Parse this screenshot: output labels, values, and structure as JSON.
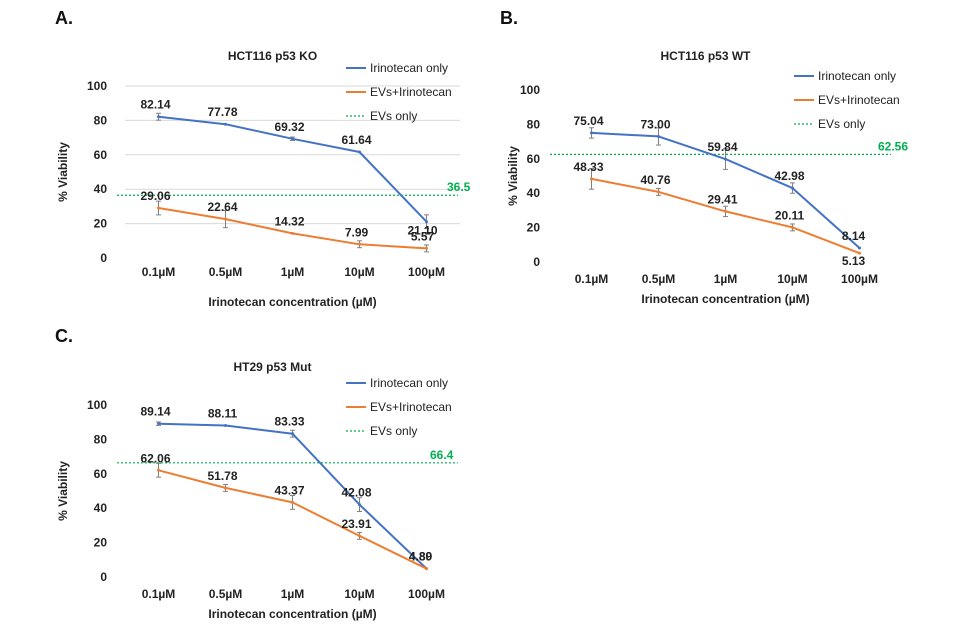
{
  "colors": {
    "irinotecan": "#4472c4",
    "evs_irinotecan": "#ed7d31",
    "evs_only": "#00b050",
    "grid": "#d9d9d9",
    "errorbar": "#808080"
  },
  "chart_data": [
    {
      "type": "line",
      "panel_label": "A.",
      "title": "HCT116 p53 KO",
      "xlabel": "Irinotecan concentration (µM)",
      "ylabel": "% Viability",
      "ylim": [
        0,
        100
      ],
      "yticks": [
        "0",
        "20",
        "40",
        "60",
        "80",
        "100"
      ],
      "categories": [
        "0.1µM",
        "0.5µM",
        "1µM",
        "10µM",
        "100µM"
      ],
      "grid": true,
      "legend_position": "top-right",
      "series": [
        {
          "name": "Irinotecan only",
          "values": [
            82.14,
            77.78,
            69.32,
            61.64,
            21.1
          ],
          "labels": [
            "82.14",
            "77.78",
            "69.32",
            "61.64",
            "21.10"
          ],
          "errors": [
            2,
            0,
            1,
            0,
            4
          ]
        },
        {
          "name": "EVs+Irinotecan",
          "values": [
            29.06,
            22.64,
            14.32,
            7.99,
            5.57
          ],
          "labels": [
            "29.06",
            "22.64",
            "14.32",
            "7.99",
            "5.57"
          ],
          "errors": [
            4,
            5,
            0,
            2,
            2
          ]
        }
      ],
      "reference_line": {
        "name": "EVs only",
        "value": 36.5,
        "label": "36.5"
      }
    },
    {
      "type": "line",
      "panel_label": "B.",
      "title": "HCT116 p53 WT",
      "xlabel": "Irinotecan concentration (µM)",
      "ylabel": "% Viability",
      "ylim": [
        0,
        100
      ],
      "yticks": [
        "0",
        "20",
        "40",
        "60",
        "80",
        "100"
      ],
      "categories": [
        "0.1µM",
        "0.5µM",
        "1µM",
        "10µM",
        "100µM"
      ],
      "grid": false,
      "legend_position": "top-right",
      "series": [
        {
          "name": "Irinotecan only",
          "values": [
            75.04,
            73.0,
            59.84,
            42.98,
            8.14
          ],
          "labels": [
            "75.04",
            "73.00",
            "59.84",
            "42.98",
            "8.14"
          ],
          "errors": [
            3,
            5,
            6,
            3,
            0
          ]
        },
        {
          "name": "EVs+Irinotecan",
          "values": [
            48.33,
            40.76,
            29.41,
            20.11,
            5.13
          ],
          "labels": [
            "48.33",
            "40.76",
            "29.41",
            "20.11",
            "5.13"
          ],
          "errors": [
            6,
            2,
            3,
            2,
            0
          ]
        }
      ],
      "reference_line": {
        "name": "EVs only",
        "value": 62.56,
        "label": "62.56"
      }
    },
    {
      "type": "line",
      "panel_label": "C.",
      "title": "HT29 p53 Mut",
      "xlabel": "Irinotecan concentration (µM)",
      "ylabel": "% Viability",
      "ylim": [
        0,
        100
      ],
      "yticks": [
        "0",
        "20",
        "40",
        "60",
        "80",
        "100"
      ],
      "categories": [
        "0.1µM",
        "0.5µM",
        "1µM",
        "10µM",
        "100µM"
      ],
      "grid": false,
      "legend_position": "top-right",
      "series": [
        {
          "name": "Irinotecan only",
          "values": [
            89.14,
            88.11,
            83.33,
            42.08,
            4.89
          ],
          "labels": [
            "89.14",
            "88.11",
            "83.33",
            "42.08",
            "4.89"
          ],
          "errors": [
            1,
            0,
            2,
            4,
            0
          ]
        },
        {
          "name": "EVs+Irinotecan",
          "values": [
            62.06,
            51.78,
            43.37,
            23.91,
            4.8
          ],
          "labels": [
            "62.06",
            "51.78",
            "43.37",
            "23.91",
            "4.80"
          ],
          "errors": [
            4,
            2,
            4,
            2,
            0
          ]
        }
      ],
      "reference_line": {
        "name": "EVs only",
        "value": 66.4,
        "label": "66.4"
      }
    }
  ]
}
